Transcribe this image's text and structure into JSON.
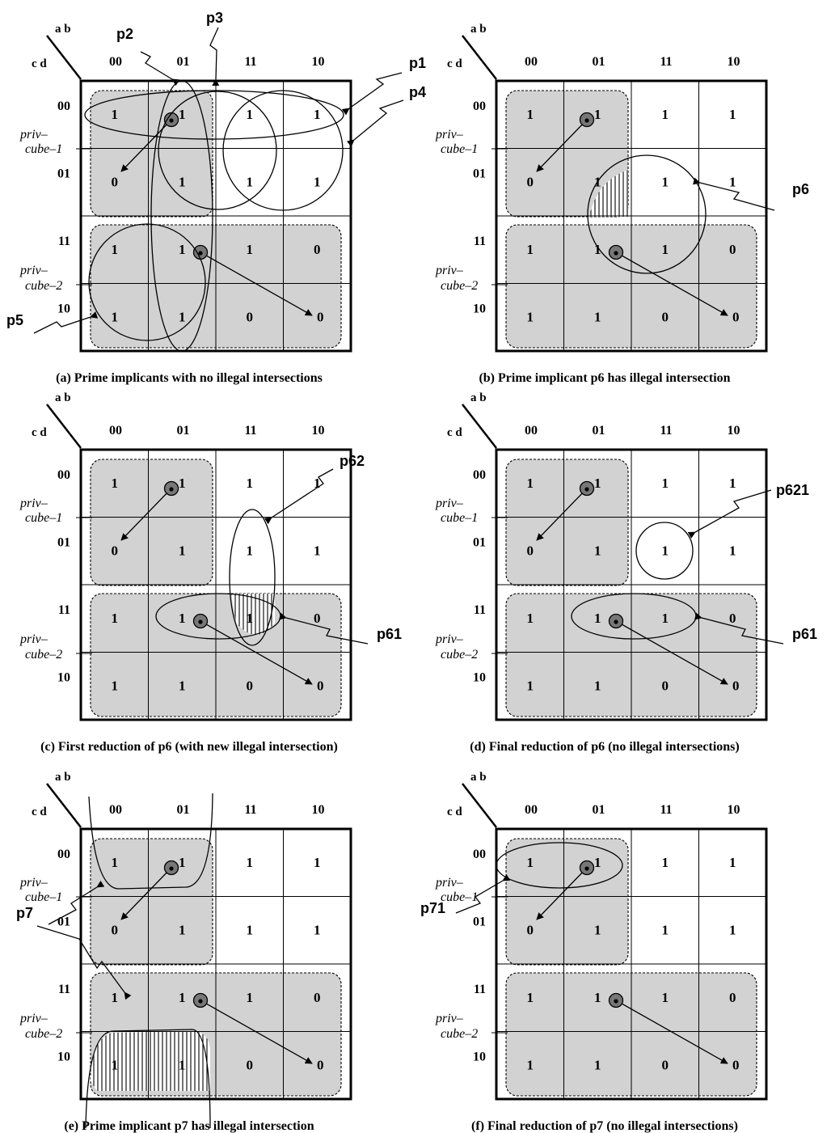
{
  "axes": {
    "ab": "a b",
    "cd": "c d"
  },
  "gray_codes": [
    "00",
    "01",
    "11",
    "10"
  ],
  "priv_labels": [
    "priv–",
    "cube–1",
    "priv–",
    "cube–2"
  ],
  "panels": [
    {
      "id": "a",
      "caption": "(a) Prime implicants with no illegal intersections",
      "cells": [
        [
          "1",
          "1",
          "1",
          "1"
        ],
        [
          "0",
          "1",
          "1",
          "1"
        ],
        [
          "1",
          "1",
          "1",
          "0"
        ],
        [
          "1",
          "1",
          "0",
          "0"
        ]
      ],
      "labels": [
        "p1",
        "p2",
        "p3",
        "p4",
        "p5"
      ]
    },
    {
      "id": "b",
      "caption": "(b) Prime implicant p6 has illegal intersection",
      "cells": [
        [
          "1",
          "1",
          "1",
          "1"
        ],
        [
          "0",
          "1",
          "1",
          "1"
        ],
        [
          "1",
          "1",
          "1",
          "0"
        ],
        [
          "1",
          "1",
          "0",
          "0"
        ]
      ],
      "labels": [
        "p6"
      ]
    },
    {
      "id": "c",
      "caption": "(c) First reduction of p6 (with new illegal intersection)",
      "cells": [
        [
          "1",
          "1",
          "1",
          "1"
        ],
        [
          "0",
          "1",
          "1",
          "1"
        ],
        [
          "1",
          "1",
          "1",
          "0"
        ],
        [
          "1",
          "1",
          "0",
          "0"
        ]
      ],
      "labels": [
        "p62",
        "p61"
      ]
    },
    {
      "id": "d",
      "caption": "(d) Final reduction of p6 (no illegal intersections)",
      "cells": [
        [
          "1",
          "1",
          "1",
          "1"
        ],
        [
          "0",
          "1",
          "1",
          "1"
        ],
        [
          "1",
          "1",
          "1",
          "0"
        ],
        [
          "1",
          "1",
          "0",
          "0"
        ]
      ],
      "labels": [
        "p621",
        "p61"
      ]
    },
    {
      "id": "e",
      "caption": "(e) Prime implicant p7 has illegal intersection",
      "cells": [
        [
          "1",
          "1",
          "1",
          "1"
        ],
        [
          "0",
          "1",
          "1",
          "1"
        ],
        [
          "1",
          "1",
          "1",
          "0"
        ],
        [
          "1",
          "1",
          "0",
          "0"
        ]
      ],
      "labels": [
        "p7"
      ]
    },
    {
      "id": "f",
      "caption": "(f) Final reduction of p7 (no illegal intersections)",
      "cells": [
        [
          "1",
          "1",
          "1",
          "1"
        ],
        [
          "0",
          "1",
          "1",
          "1"
        ],
        [
          "1",
          "1",
          "1",
          "0"
        ],
        [
          "1",
          "1",
          "0",
          "0"
        ]
      ],
      "labels": [
        "p71"
      ]
    }
  ]
}
